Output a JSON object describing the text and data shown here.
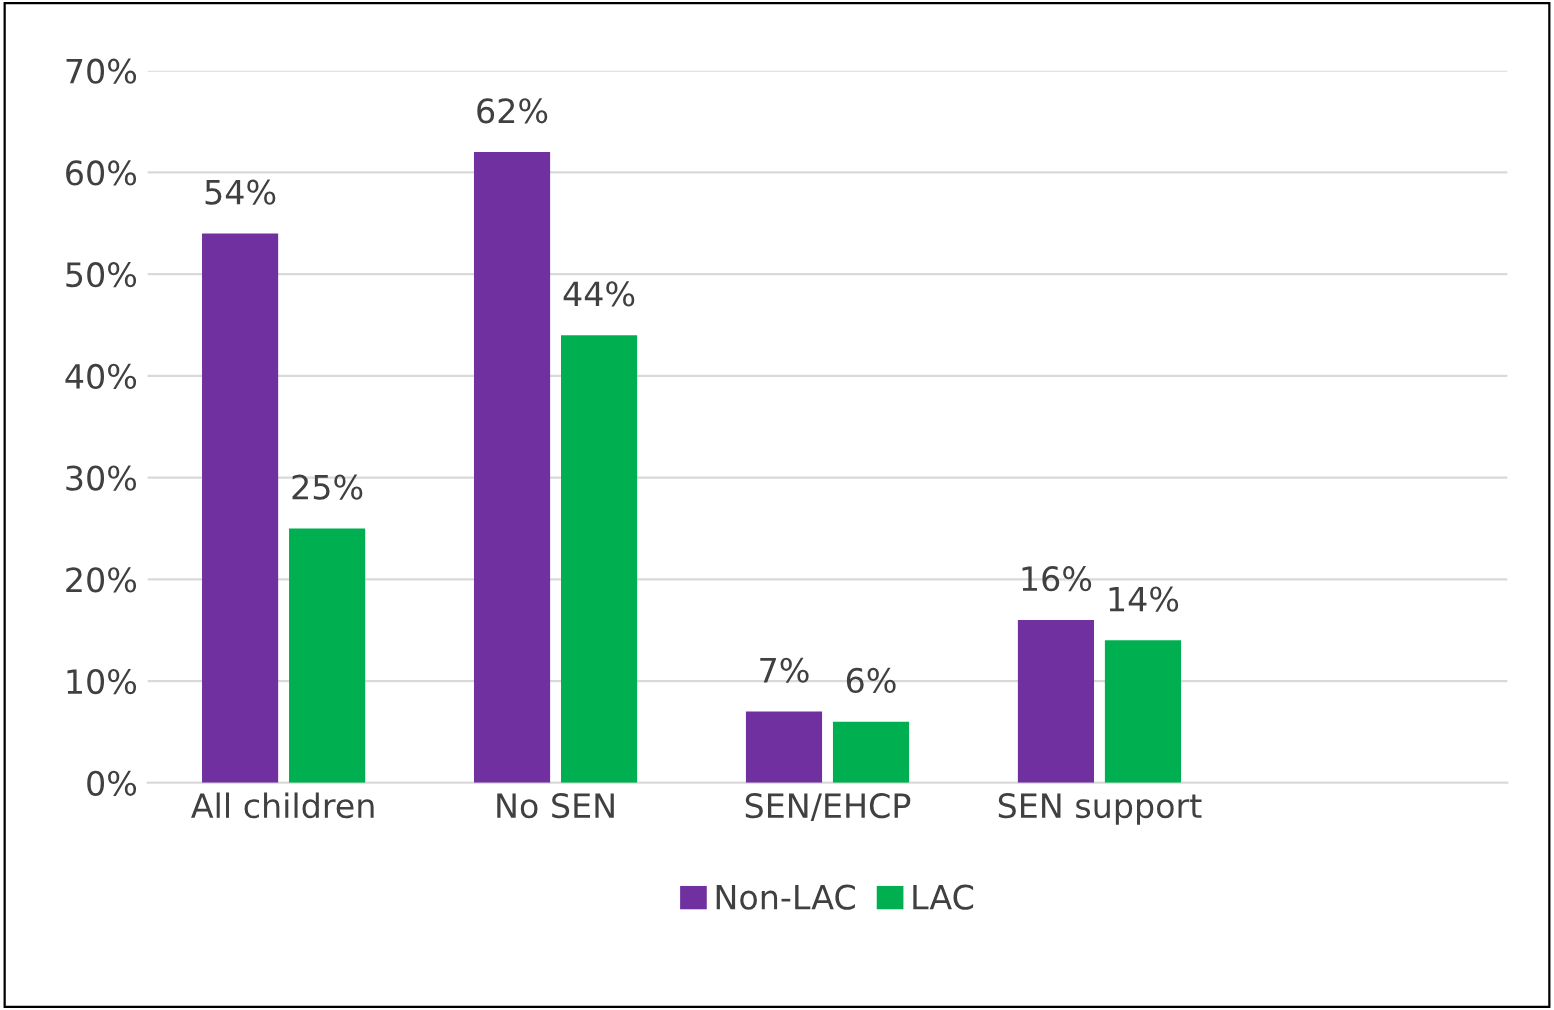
{
  "chart_data": {
    "type": "bar",
    "categories": [
      "All children",
      "No SEN",
      "SEN/EHCP",
      "SEN support",
      null
    ],
    "series": [
      {
        "name": "Non-LAC",
        "color": "#7030a0",
        "values": [
          54,
          62,
          7,
          16,
          null
        ]
      },
      {
        "name": "LAC",
        "color": "#00b050",
        "values": [
          25,
          44,
          6,
          14,
          null
        ]
      }
    ],
    "ylim": [
      0,
      70
    ],
    "yticks": [
      {
        "value": 0,
        "label": "0%"
      },
      {
        "value": 10,
        "label": "10%"
      },
      {
        "value": 20,
        "label": "20%"
      },
      {
        "value": 30,
        "label": "30%"
      },
      {
        "value": 40,
        "label": "40%"
      },
      {
        "value": 50,
        "label": "50%"
      },
      {
        "value": 60,
        "label": "60%"
      },
      {
        "value": 70,
        "label": "70%"
      }
    ],
    "value_labels": [
      [
        "54%",
        "62%",
        "7%",
        "16%",
        null
      ],
      [
        "25%",
        "44%",
        "6%",
        "14%",
        null
      ]
    ],
    "grid": "y",
    "legend": "bottom"
  }
}
